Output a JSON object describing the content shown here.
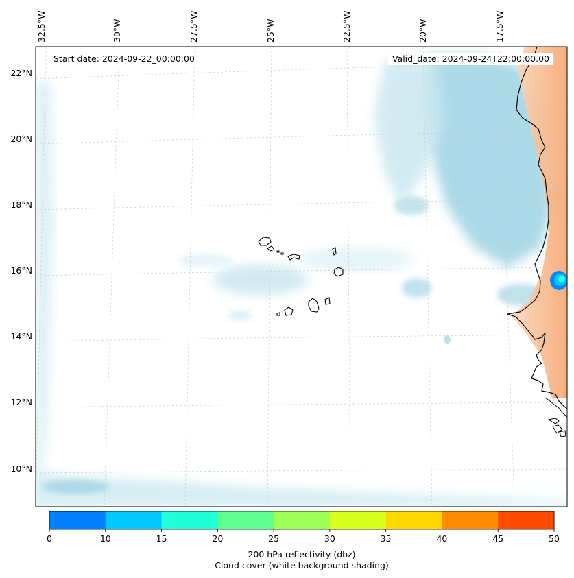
{
  "map": {
    "start_label": "Start date: 2024-09-22_00:00:00",
    "valid_label": "Valid_date: 2024-09-24T22:00:00.00",
    "lon_ticks": [
      "32.5°W",
      "30°W",
      "27.5°W",
      "25°W",
      "22.5°W",
      "20°W",
      "17.5°W"
    ],
    "lat_ticks": [
      "22°N",
      "20°N",
      "18°N",
      "16°N",
      "14°N",
      "12°N",
      "10°N"
    ],
    "colors": {
      "cloud": "#a8d8e6",
      "coast": "#000000",
      "land_warm": "#f6b07e",
      "echo_core": "#00c8ff",
      "echo_edge": "#0088ff"
    }
  },
  "colorbar": {
    "ticks": [
      "0",
      "10",
      "15",
      "20",
      "25",
      "30",
      "35",
      "40",
      "45",
      "50"
    ],
    "colors": [
      "#0080ff",
      "#00c8ff",
      "#1fffd8",
      "#5cff90",
      "#9dff55",
      "#d8ff1f",
      "#ffd800",
      "#ff8c00",
      "#ff4a00"
    ],
    "title_line1": "200 hPa reflectivity (dbz)",
    "title_line2": "Cloud cover (white background shading)"
  }
}
